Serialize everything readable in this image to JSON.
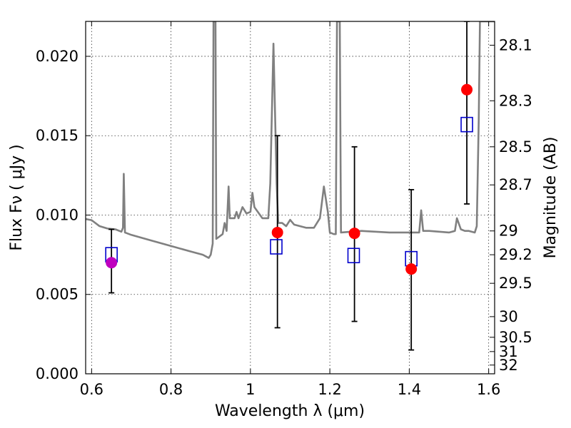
{
  "chart_data": {
    "type": "scatter",
    "title": "",
    "xlabel": "Wavelength  λ (μm)",
    "ylabel": "Flux  Fν  ( μJy )",
    "y2label": "Magnitude (AB)",
    "xlim": [
      0.585,
      1.615
    ],
    "ylim": [
      0.0,
      0.0222
    ],
    "x_ticks": [
      0.6,
      0.8,
      1.0,
      1.2,
      1.4,
      1.6
    ],
    "x_tick_labels": [
      "0.6",
      "0.8",
      "1",
      "1.2",
      "1.4",
      "1.6"
    ],
    "y_ticks": [
      0.0,
      0.005,
      0.01,
      0.015,
      0.02
    ],
    "y_tick_labels": [
      "0.000",
      "0.005",
      "0.010",
      "0.015",
      "0.020"
    ],
    "y2_ticks": [
      {
        "label": "28.1",
        "flux": 0.0207
      },
      {
        "label": "28.3",
        "flux": 0.0172
      },
      {
        "label": "28.5",
        "flux": 0.0143
      },
      {
        "label": "28.7",
        "flux": 0.0119
      },
      {
        "label": "29",
        "flux": 0.009
      },
      {
        "label": "29.2",
        "flux": 0.0075
      },
      {
        "label": "29.5",
        "flux": 0.0057
      },
      {
        "label": "30",
        "flux": 0.0036
      },
      {
        "label": "30.5",
        "flux": 0.0023
      },
      {
        "label": "31",
        "flux": 0.0014
      },
      {
        "label": "32",
        "flux": 0.00055
      }
    ],
    "grid": true,
    "colors": {
      "model": "#808080",
      "observed": "#ff0000",
      "observed_first": "#bf00bf",
      "model_photometry": "#0000cc",
      "errorbar": "#000000"
    },
    "series": [
      {
        "kind": "line",
        "points": [
          [
            0.585,
            0.00975
          ],
          [
            0.6,
            0.00968
          ],
          [
            0.62,
            0.0093
          ],
          [
            0.64,
            0.00915
          ],
          [
            0.66,
            0.0091
          ],
          [
            0.675,
            0.00895
          ],
          [
            0.679,
            0.0092
          ],
          [
            0.681,
            0.0126
          ],
          [
            0.684,
            0.0089
          ],
          [
            0.7,
            0.00875
          ],
          [
            0.75,
            0.0084
          ],
          [
            0.8,
            0.00805
          ],
          [
            0.85,
            0.0077
          ],
          [
            0.88,
            0.0075
          ],
          [
            0.895,
            0.0073
          ],
          [
            0.9,
            0.0075
          ],
          [
            0.905,
            0.0082
          ],
          [
            0.907,
            0.0222
          ],
          [
            0.912,
            0.0222
          ],
          [
            0.914,
            0.0085
          ],
          [
            0.93,
            0.0088
          ],
          [
            0.935,
            0.0095
          ],
          [
            0.94,
            0.009
          ],
          [
            0.945,
            0.0118
          ],
          [
            0.948,
            0.0098
          ],
          [
            0.96,
            0.0098
          ],
          [
            0.965,
            0.0102
          ],
          [
            0.97,
            0.0098
          ],
          [
            0.98,
            0.0105
          ],
          [
            0.99,
            0.0101
          ],
          [
            1.0,
            0.0102
          ],
          [
            1.005,
            0.0114
          ],
          [
            1.01,
            0.0105
          ],
          [
            1.03,
            0.0098
          ],
          [
            1.045,
            0.0098
          ],
          [
            1.05,
            0.012
          ],
          [
            1.058,
            0.0208
          ],
          [
            1.066,
            0.012
          ],
          [
            1.07,
            0.0095
          ],
          [
            1.08,
            0.0095
          ],
          [
            1.09,
            0.0093
          ],
          [
            1.1,
            0.0097
          ],
          [
            1.11,
            0.0094
          ],
          [
            1.14,
            0.0092
          ],
          [
            1.16,
            0.0092
          ],
          [
            1.175,
            0.0098
          ],
          [
            1.185,
            0.0118
          ],
          [
            1.195,
            0.0102
          ],
          [
            1.2,
            0.0089
          ],
          [
            1.21,
            0.0088
          ],
          [
            1.215,
            0.0088
          ],
          [
            1.218,
            0.0222
          ],
          [
            1.225,
            0.0222
          ],
          [
            1.228,
            0.0089
          ],
          [
            1.28,
            0.009
          ],
          [
            1.35,
            0.0089
          ],
          [
            1.41,
            0.0089
          ],
          [
            1.425,
            0.0089
          ],
          [
            1.43,
            0.0103
          ],
          [
            1.435,
            0.009
          ],
          [
            1.45,
            0.009
          ],
          [
            1.5,
            0.0089
          ],
          [
            1.515,
            0.009
          ],
          [
            1.52,
            0.0098
          ],
          [
            1.53,
            0.0091
          ],
          [
            1.54,
            0.009
          ],
          [
            1.55,
            0.009
          ],
          [
            1.565,
            0.0089
          ],
          [
            1.57,
            0.0093
          ],
          [
            1.575,
            0.016
          ],
          [
            1.578,
            0.0222
          ],
          [
            1.615,
            0.0222
          ]
        ]
      },
      {
        "kind": "model_photometry",
        "points": [
          [
            0.65,
            0.0075
          ],
          [
            1.065,
            0.008
          ],
          [
            1.26,
            0.00745
          ],
          [
            1.405,
            0.00725
          ],
          [
            1.545,
            0.0157
          ]
        ]
      },
      {
        "kind": "observed",
        "points": [
          {
            "x": 0.65,
            "y": 0.007,
            "yerr_low": 0.0051,
            "yerr_high": 0.0091
          },
          {
            "x": 1.068,
            "y": 0.0089,
            "yerr_low": 0.0029,
            "yerr_high": 0.015
          },
          {
            "x": 1.262,
            "y": 0.00885,
            "yerr_low": 0.0033,
            "yerr_high": 0.0143
          },
          {
            "x": 1.405,
            "y": 0.0066,
            "yerr_low": 0.0015,
            "yerr_high": 0.0116
          },
          {
            "x": 1.545,
            "y": 0.0179,
            "yerr_low": 0.0107,
            "yerr_high": 0.0222
          }
        ]
      }
    ]
  }
}
